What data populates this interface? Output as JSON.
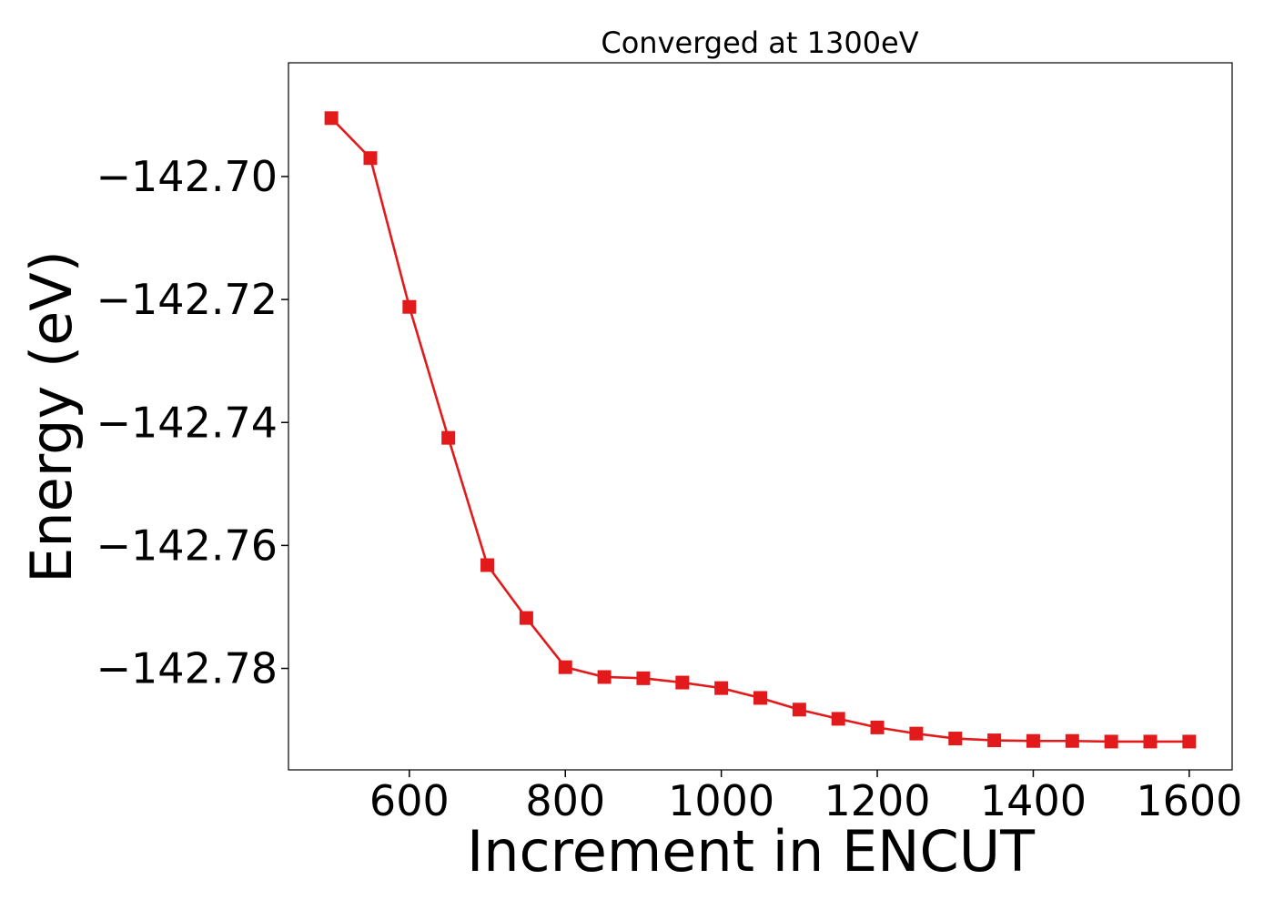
{
  "chart_data": {
    "type": "line",
    "title": "Converged at 1300eV",
    "xlabel": "Increment in ENCUT",
    "ylabel": "Energy (eV)",
    "xlim": [
      445,
      1655
    ],
    "ylim": [
      -142.7965,
      -142.6815
    ],
    "xticks": [
      600,
      800,
      1000,
      1200,
      1400,
      1600
    ],
    "yticks": [
      -142.7,
      -142.72,
      -142.74,
      -142.76,
      -142.78
    ],
    "ytick_labels": [
      "−142.70",
      "−142.72",
      "−142.74",
      "−142.76",
      "−142.78"
    ],
    "grid": false,
    "marker": "square",
    "color": "#e31a1c",
    "series": [
      {
        "x": [
          500,
          550,
          600,
          650,
          700,
          750,
          800,
          850,
          900,
          950,
          1000,
          1050,
          1100,
          1150,
          1200,
          1250,
          1300,
          1350,
          1400,
          1450,
          1500,
          1550,
          1600
        ],
        "y": [
          -142.6905,
          -142.697,
          -142.7212,
          -142.7425,
          -142.7632,
          -142.7718,
          -142.7798,
          -142.7814,
          -142.7816,
          -142.7823,
          -142.7832,
          -142.7848,
          -142.7867,
          -142.7882,
          -142.7896,
          -142.7906,
          -142.7914,
          -142.7917,
          -142.7918,
          -142.7918,
          -142.7919,
          -142.7919,
          -142.7919
        ]
      }
    ]
  }
}
